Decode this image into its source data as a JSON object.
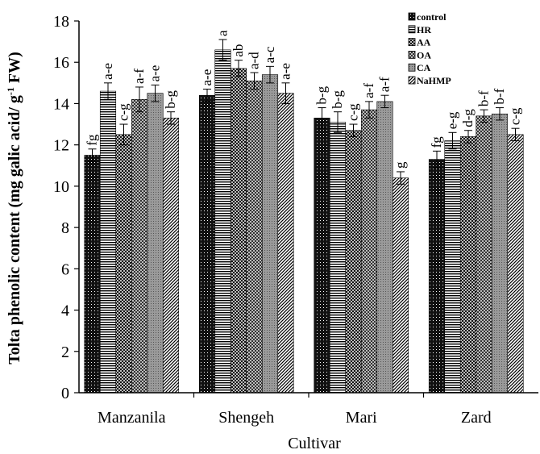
{
  "chart_data": {
    "type": "bar",
    "title": "",
    "xlabel": "Cultivar",
    "ylabel": "Tolta phenolic content  (mg galic acid/ g",
    "ylabel_sup": "-1",
    "ylabel_end": " FW)",
    "ylim": [
      0,
      18
    ],
    "yticks": [
      0,
      2,
      4,
      6,
      8,
      10,
      12,
      14,
      16,
      18
    ],
    "grid": false,
    "legend_position": "top-right",
    "categories": [
      "Manzanila",
      "Shengeh",
      "Mari",
      "Zard"
    ],
    "series": [
      {
        "name": "control",
        "values": [
          11.5,
          14.4,
          13.3,
          11.3
        ],
        "errors": [
          0.3,
          0.3,
          0.5,
          0.4
        ],
        "letters": [
          "fg",
          "a-e",
          "b-g",
          "fg"
        ]
      },
      {
        "name": "HR",
        "values": [
          14.6,
          16.6,
          13.1,
          12.2
        ],
        "errors": [
          0.4,
          0.5,
          0.5,
          0.4
        ],
        "letters": [
          "a-e",
          "a",
          "b-g",
          "e-g"
        ]
      },
      {
        "name": "AA",
        "values": [
          12.5,
          15.7,
          12.7,
          12.4
        ],
        "errors": [
          0.5,
          0.4,
          0.3,
          0.3
        ],
        "letters": [
          "c-g",
          "ab",
          "c-g",
          "d-g"
        ]
      },
      {
        "name": "OA",
        "values": [
          14.2,
          15.1,
          13.7,
          13.4
        ],
        "errors": [
          0.6,
          0.4,
          0.4,
          0.3
        ],
        "letters": [
          "a-f",
          "a-d",
          "a-f",
          "b-f"
        ]
      },
      {
        "name": "CA",
        "values": [
          14.5,
          15.4,
          14.1,
          13.5
        ],
        "errors": [
          0.4,
          0.4,
          0.3,
          0.3
        ],
        "letters": [
          "a-e",
          "a-c",
          "a-f",
          "b-f"
        ]
      },
      {
        "name": "NaHMP",
        "values": [
          13.3,
          14.5,
          10.4,
          12.5
        ],
        "errors": [
          0.3,
          0.5,
          0.3,
          0.3
        ],
        "letters": [
          "b-g",
          "a-e",
          "g",
          "c-g"
        ]
      }
    ]
  }
}
